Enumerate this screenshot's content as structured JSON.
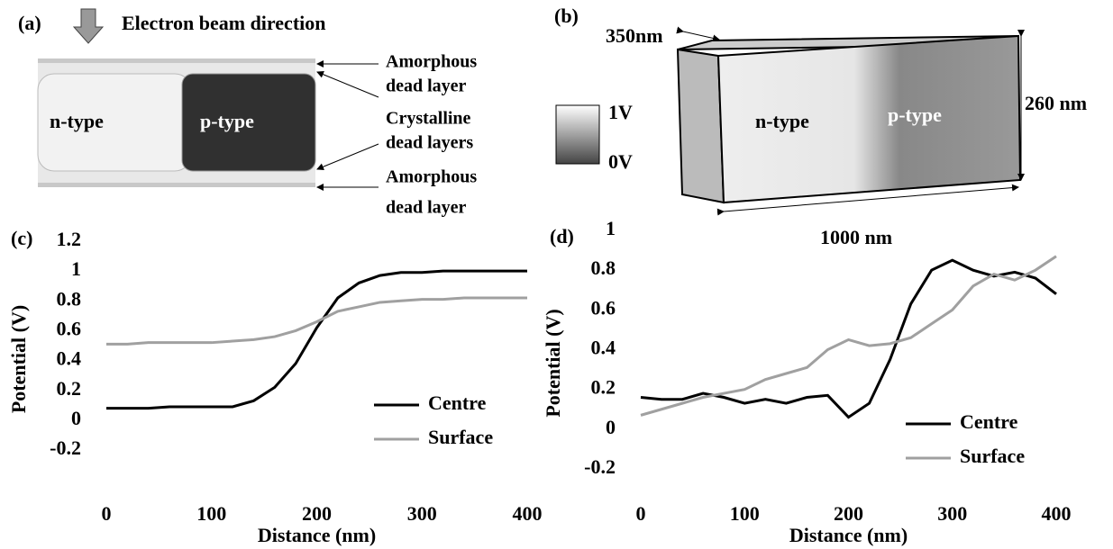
{
  "panels": {
    "a": {
      "label": "(a)",
      "beam": "Electron beam direction",
      "n_type": "n-type",
      "p_type": "p-type",
      "annotations": [
        [
          "Amorphous",
          "dead layer"
        ],
        [
          "Crystalline",
          "dead layers"
        ],
        [
          "Amorphous",
          "dead layer"
        ]
      ]
    },
    "b": {
      "label": "(b)",
      "depth": "350nm",
      "height": "260 nm",
      "width": "1000 nm",
      "scale_max": "1V",
      "scale_min": "0V",
      "n_type": "n-type",
      "p_type": "p-type"
    }
  },
  "chart_data": [
    {
      "type": "line",
      "panel_label": "(c)",
      "x_label": "Distance (nm)",
      "y_label": "Potential (V)",
      "x": [
        0,
        20,
        40,
        60,
        80,
        100,
        120,
        140,
        160,
        180,
        200,
        220,
        240,
        260,
        280,
        300,
        320,
        340,
        360,
        380,
        400
      ],
      "series": [
        {
          "name": "Centre",
          "color": "#000000",
          "values": [
            0.08,
            0.08,
            0.08,
            0.09,
            0.09,
            0.09,
            0.09,
            0.13,
            0.22,
            0.38,
            0.62,
            0.82,
            0.92,
            0.97,
            0.99,
            0.99,
            1,
            1,
            1,
            1,
            1
          ]
        },
        {
          "name": "Surface",
          "color": "#a0a0a0",
          "values": [
            0.51,
            0.51,
            0.52,
            0.52,
            0.52,
            0.52,
            0.53,
            0.54,
            0.56,
            0.6,
            0.66,
            0.73,
            0.76,
            0.79,
            0.8,
            0.81,
            0.81,
            0.82,
            0.82,
            0.82,
            0.82
          ]
        }
      ],
      "xlim": [
        0,
        400
      ],
      "xticks": [
        0,
        100,
        200,
        300,
        400
      ],
      "ylim": [
        -0.2,
        1.2
      ],
      "yticks": [
        -0.2,
        0,
        0.2,
        0.4,
        0.6,
        0.8,
        1,
        1.2
      ],
      "legend": "lower right"
    },
    {
      "type": "line",
      "panel_label": "(d)",
      "x_label": "Distance (nm)",
      "y_label": "Potential (V)",
      "x": [
        0,
        20,
        40,
        60,
        80,
        100,
        120,
        140,
        160,
        180,
        200,
        220,
        240,
        260,
        280,
        300,
        320,
        340,
        360,
        380,
        400
      ],
      "series": [
        {
          "name": "Centre",
          "color": "#000000",
          "values": [
            0.16,
            0.15,
            0.15,
            0.18,
            0.16,
            0.13,
            0.15,
            0.13,
            0.16,
            0.17,
            0.06,
            0.13,
            0.35,
            0.63,
            0.8,
            0.85,
            0.8,
            0.77,
            0.79,
            0.76,
            0.68
          ]
        },
        {
          "name": "Surface",
          "color": "#a0a0a0",
          "values": [
            0.07,
            0.1,
            0.13,
            0.16,
            0.18,
            0.2,
            0.25,
            0.28,
            0.31,
            0.4,
            0.45,
            0.42,
            0.43,
            0.46,
            0.53,
            0.6,
            0.72,
            0.78,
            0.75,
            0.8,
            0.87
          ]
        }
      ],
      "xlim": [
        0,
        400
      ],
      "xticks": [
        0,
        100,
        200,
        300,
        400
      ],
      "ylim": [
        -0.2,
        1
      ],
      "yticks": [
        -0.2,
        0,
        0.2,
        0.4,
        0.6,
        0.8,
        1
      ],
      "legend": "lower right"
    }
  ]
}
